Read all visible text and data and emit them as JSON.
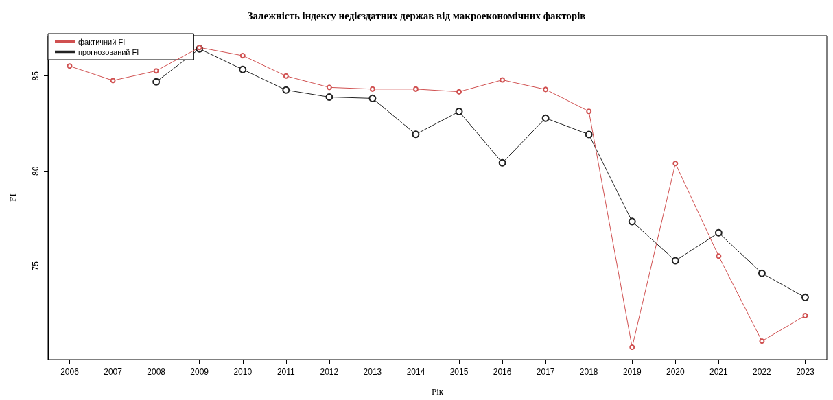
{
  "chart_data": {
    "type": "line",
    "title": "Залежність індексу недієздатних держав від макроекономічних факторів",
    "xlabel": "Рік",
    "ylabel": "FI",
    "categories": [
      "2006",
      "2007",
      "2008",
      "2009",
      "2010",
      "2011",
      "2012",
      "2013",
      "2014",
      "2015",
      "2016",
      "2017",
      "2018",
      "2019",
      "2020",
      "2021",
      "2022",
      "2023"
    ],
    "series": [
      {
        "name": "фактичний FI",
        "color": "#d05050",
        "values": [
          85.52,
          84.76,
          85.27,
          86.5,
          86.07,
          85.0,
          84.4,
          84.31,
          84.31,
          84.17,
          84.79,
          84.29,
          83.14,
          70.73,
          80.4,
          75.52,
          71.05,
          72.39
        ]
      },
      {
        "name": "прогнозований FI",
        "color": "#222222",
        "values": [
          null,
          null,
          84.69,
          86.43,
          85.34,
          84.26,
          83.89,
          83.82,
          81.93,
          83.13,
          80.43,
          82.78,
          81.92,
          77.34,
          75.28,
          76.75,
          74.62,
          73.35
        ]
      }
    ],
    "ylim": [
      70.08,
      87.12
    ],
    "yticks": [
      75,
      80,
      85
    ],
    "grid": false,
    "legend": "top left",
    "marker": "circle",
    "line_style": "solid"
  }
}
